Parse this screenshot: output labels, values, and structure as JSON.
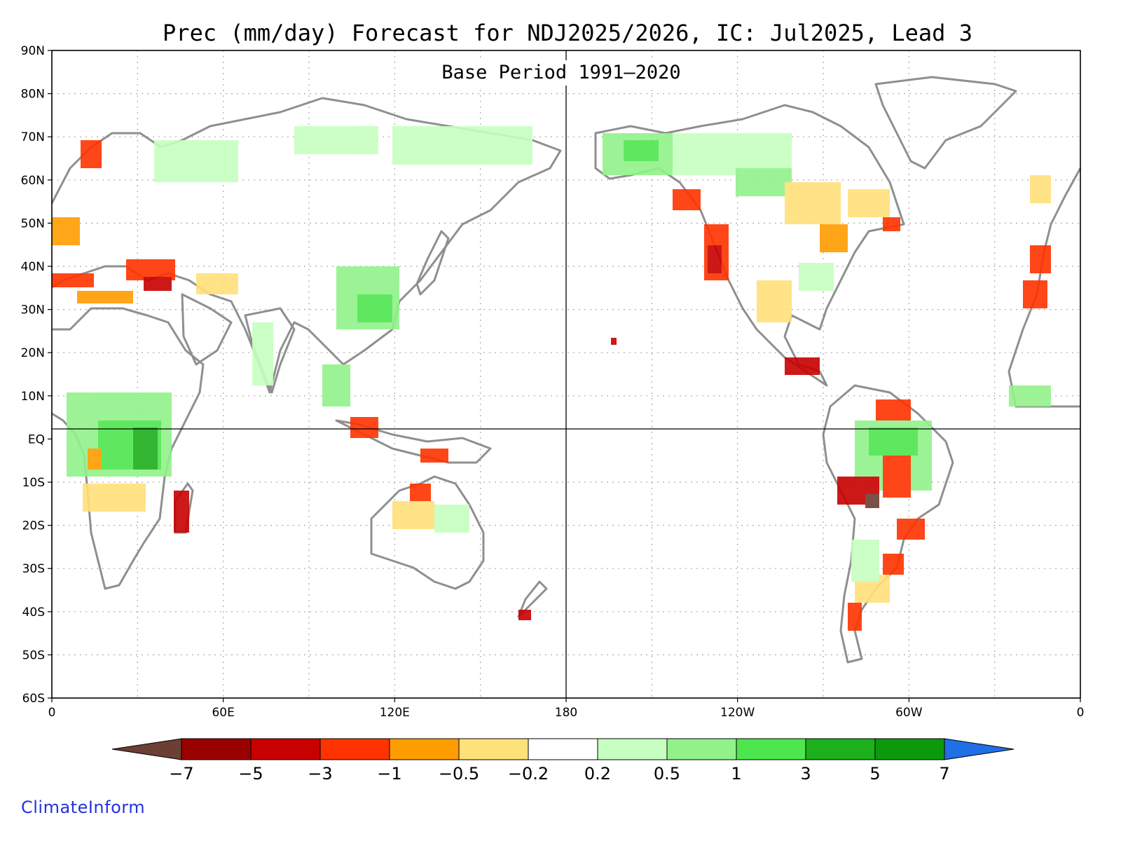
{
  "map": {
    "title": "Prec (mm/day) Forecast for NDJ2025/2026, IC: Jul2025, Lead 3",
    "subtitle": "Base Period 1991–2020",
    "lat_labels": [
      "90N",
      "80N",
      "70N",
      "60N",
      "50N",
      "40N",
      "30N",
      "20N",
      "10N",
      "EQ",
      "10S",
      "20S",
      "30S",
      "40S",
      "50S",
      "60S"
    ],
    "lon_labels": [
      "0",
      "60E",
      "120E",
      "180",
      "120W",
      "60W",
      "0"
    ],
    "lon_range": [
      0,
      360
    ],
    "lat_range": [
      -60,
      90
    ]
  },
  "colorbar": {
    "colors": [
      "#6b3f34",
      "#9a0000",
      "#c80000",
      "#ff3300",
      "#ff9d00",
      "#ffe179",
      "#ffffff",
      "#c6ffc0",
      "#92f28a",
      "#4ee64e",
      "#1db01d",
      "#0c9a0c",
      "#1f6fe6"
    ],
    "labels": [
      "−7",
      "−5",
      "−3",
      "−1",
      "−0.5",
      "−0.2",
      "0.2",
      "0.5",
      "1",
      "3",
      "5",
      "7"
    ]
  },
  "credit": "ClimateInform"
}
